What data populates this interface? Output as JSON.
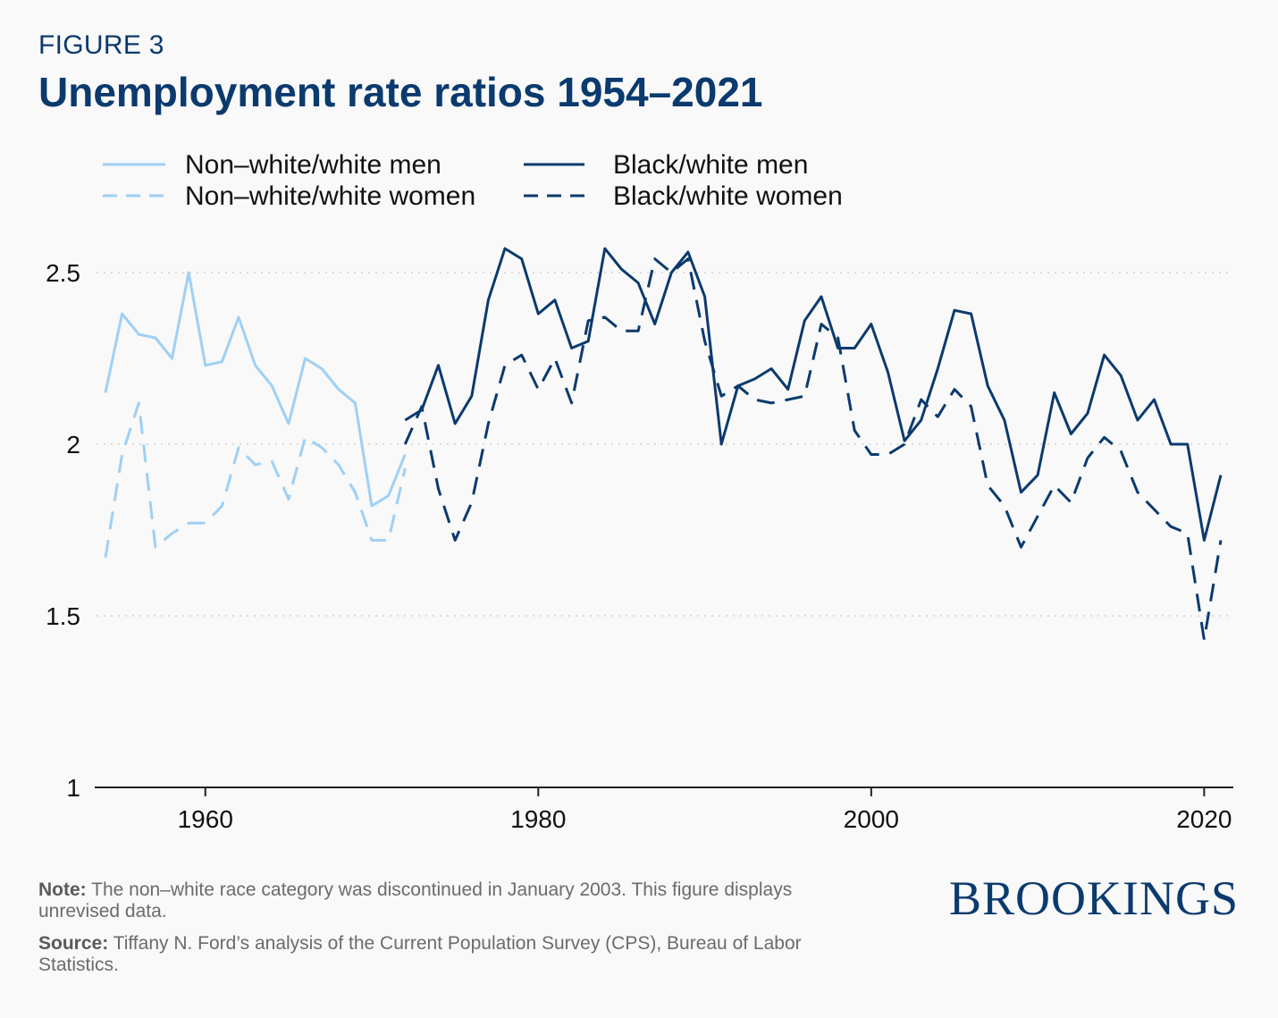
{
  "header": {
    "kicker": "FIGURE 3",
    "title": "Unemployment rate ratios 1954–2021"
  },
  "footer": {
    "note_label": "Note:",
    "note_text": " The non–white race category was discontinued in January 2003. This figure displays unrevised data.",
    "source_label": "Source:",
    "source_text": " Tiffany N. Ford’s analysis of the Current Population Survey (CPS), Bureau of Labor Statistics.",
    "logo": "BROOKINGS"
  },
  "colors": {
    "light_blue": "#9fd0f5",
    "dark_blue": "#0b3a6e"
  },
  "chart_data": {
    "type": "line",
    "title": "Unemployment rate ratios 1954–2021",
    "xlabel": "",
    "ylabel": "",
    "xlim": [
      1954,
      2021
    ],
    "ylim": [
      1,
      2.6
    ],
    "x_ticks": [
      1960,
      1980,
      2000,
      2020
    ],
    "y_ticks": [
      1,
      1.5,
      2,
      2.5
    ],
    "y_tick_labels": [
      "1",
      "1.5",
      "2",
      "2.5"
    ],
    "grid": "horizontal dotted",
    "legend_position": "top",
    "series": [
      {
        "name": "Non–white/white men",
        "color": "#9fd0f5",
        "dash": "solid",
        "x": [
          1954,
          1955,
          1956,
          1957,
          1958,
          1959,
          1960,
          1961,
          1962,
          1963,
          1964,
          1965,
          1966,
          1967,
          1968,
          1969,
          1970,
          1971,
          1972
        ],
        "values": [
          2.15,
          2.38,
          2.32,
          2.31,
          2.25,
          2.5,
          2.23,
          2.24,
          2.37,
          2.23,
          2.17,
          2.06,
          2.25,
          2.22,
          2.16,
          2.12,
          1.82,
          1.85,
          1.97
        ]
      },
      {
        "name": "Non–white/white women",
        "color": "#9fd0f5",
        "dash": "dashed",
        "x": [
          1954,
          1955,
          1956,
          1957,
          1958,
          1959,
          1960,
          1961,
          1962,
          1963,
          1964,
          1965,
          1966,
          1967,
          1968,
          1969,
          1970,
          1971,
          1972
        ],
        "values": [
          1.67,
          1.97,
          2.12,
          1.7,
          1.74,
          1.77,
          1.77,
          1.82,
          1.99,
          1.94,
          1.95,
          1.84,
          2.02,
          1.99,
          1.94,
          1.86,
          1.72,
          1.72,
          1.93
        ]
      },
      {
        "name": "Black/white men",
        "color": "#0b3a6e",
        "dash": "solid",
        "x": [
          1972,
          1973,
          1974,
          1975,
          1976,
          1977,
          1978,
          1979,
          1980,
          1981,
          1982,
          1983,
          1984,
          1985,
          1986,
          1987,
          1988,
          1989,
          1990,
          1991,
          1992,
          1993,
          1994,
          1995,
          1996,
          1997,
          1998,
          1999,
          2000,
          2001,
          2002,
          2003,
          2004,
          2005,
          2006,
          2007,
          2008,
          2009,
          2010,
          2011,
          2012,
          2013,
          2014,
          2015,
          2016,
          2017,
          2018,
          2019,
          2020,
          2021
        ],
        "values": [
          2.07,
          2.1,
          2.23,
          2.06,
          2.14,
          2.42,
          2.57,
          2.54,
          2.38,
          2.42,
          2.28,
          2.3,
          2.57,
          2.51,
          2.47,
          2.35,
          2.5,
          2.56,
          2.43,
          2.0,
          2.17,
          2.19,
          2.22,
          2.16,
          2.36,
          2.43,
          2.28,
          2.28,
          2.35,
          2.21,
          2.01,
          2.07,
          2.22,
          2.39,
          2.38,
          2.17,
          2.07,
          1.86,
          1.91,
          2.15,
          2.03,
          2.09,
          2.26,
          2.2,
          2.07,
          2.13,
          2.0,
          2.0,
          1.72,
          1.91
        ]
      },
      {
        "name": "Black/white women",
        "color": "#0b3a6e",
        "dash": "dashed",
        "x": [
          1972,
          1973,
          1974,
          1975,
          1976,
          1977,
          1978,
          1979,
          1980,
          1981,
          1982,
          1983,
          1984,
          1985,
          1986,
          1987,
          1988,
          1989,
          1990,
          1991,
          1992,
          1993,
          1994,
          1995,
          1996,
          1997,
          1998,
          1999,
          2000,
          2001,
          2002,
          2003,
          2004,
          2005,
          2006,
          2007,
          2008,
          2009,
          2010,
          2011,
          2012,
          2013,
          2014,
          2015,
          2016,
          2017,
          2018,
          2019,
          2020,
          2021
        ],
        "values": [
          2.0,
          2.11,
          1.87,
          1.72,
          1.83,
          2.06,
          2.23,
          2.26,
          2.16,
          2.25,
          2.12,
          2.36,
          2.37,
          2.33,
          2.33,
          2.54,
          2.5,
          2.54,
          2.3,
          2.14,
          2.17,
          2.13,
          2.12,
          2.13,
          2.14,
          2.35,
          2.31,
          2.04,
          1.97,
          1.97,
          2.0,
          2.13,
          2.08,
          2.16,
          2.11,
          1.88,
          1.82,
          1.7,
          1.79,
          1.88,
          1.83,
          1.96,
          2.02,
          1.98,
          1.86,
          1.81,
          1.76,
          1.74,
          1.43,
          1.72
        ]
      }
    ]
  }
}
